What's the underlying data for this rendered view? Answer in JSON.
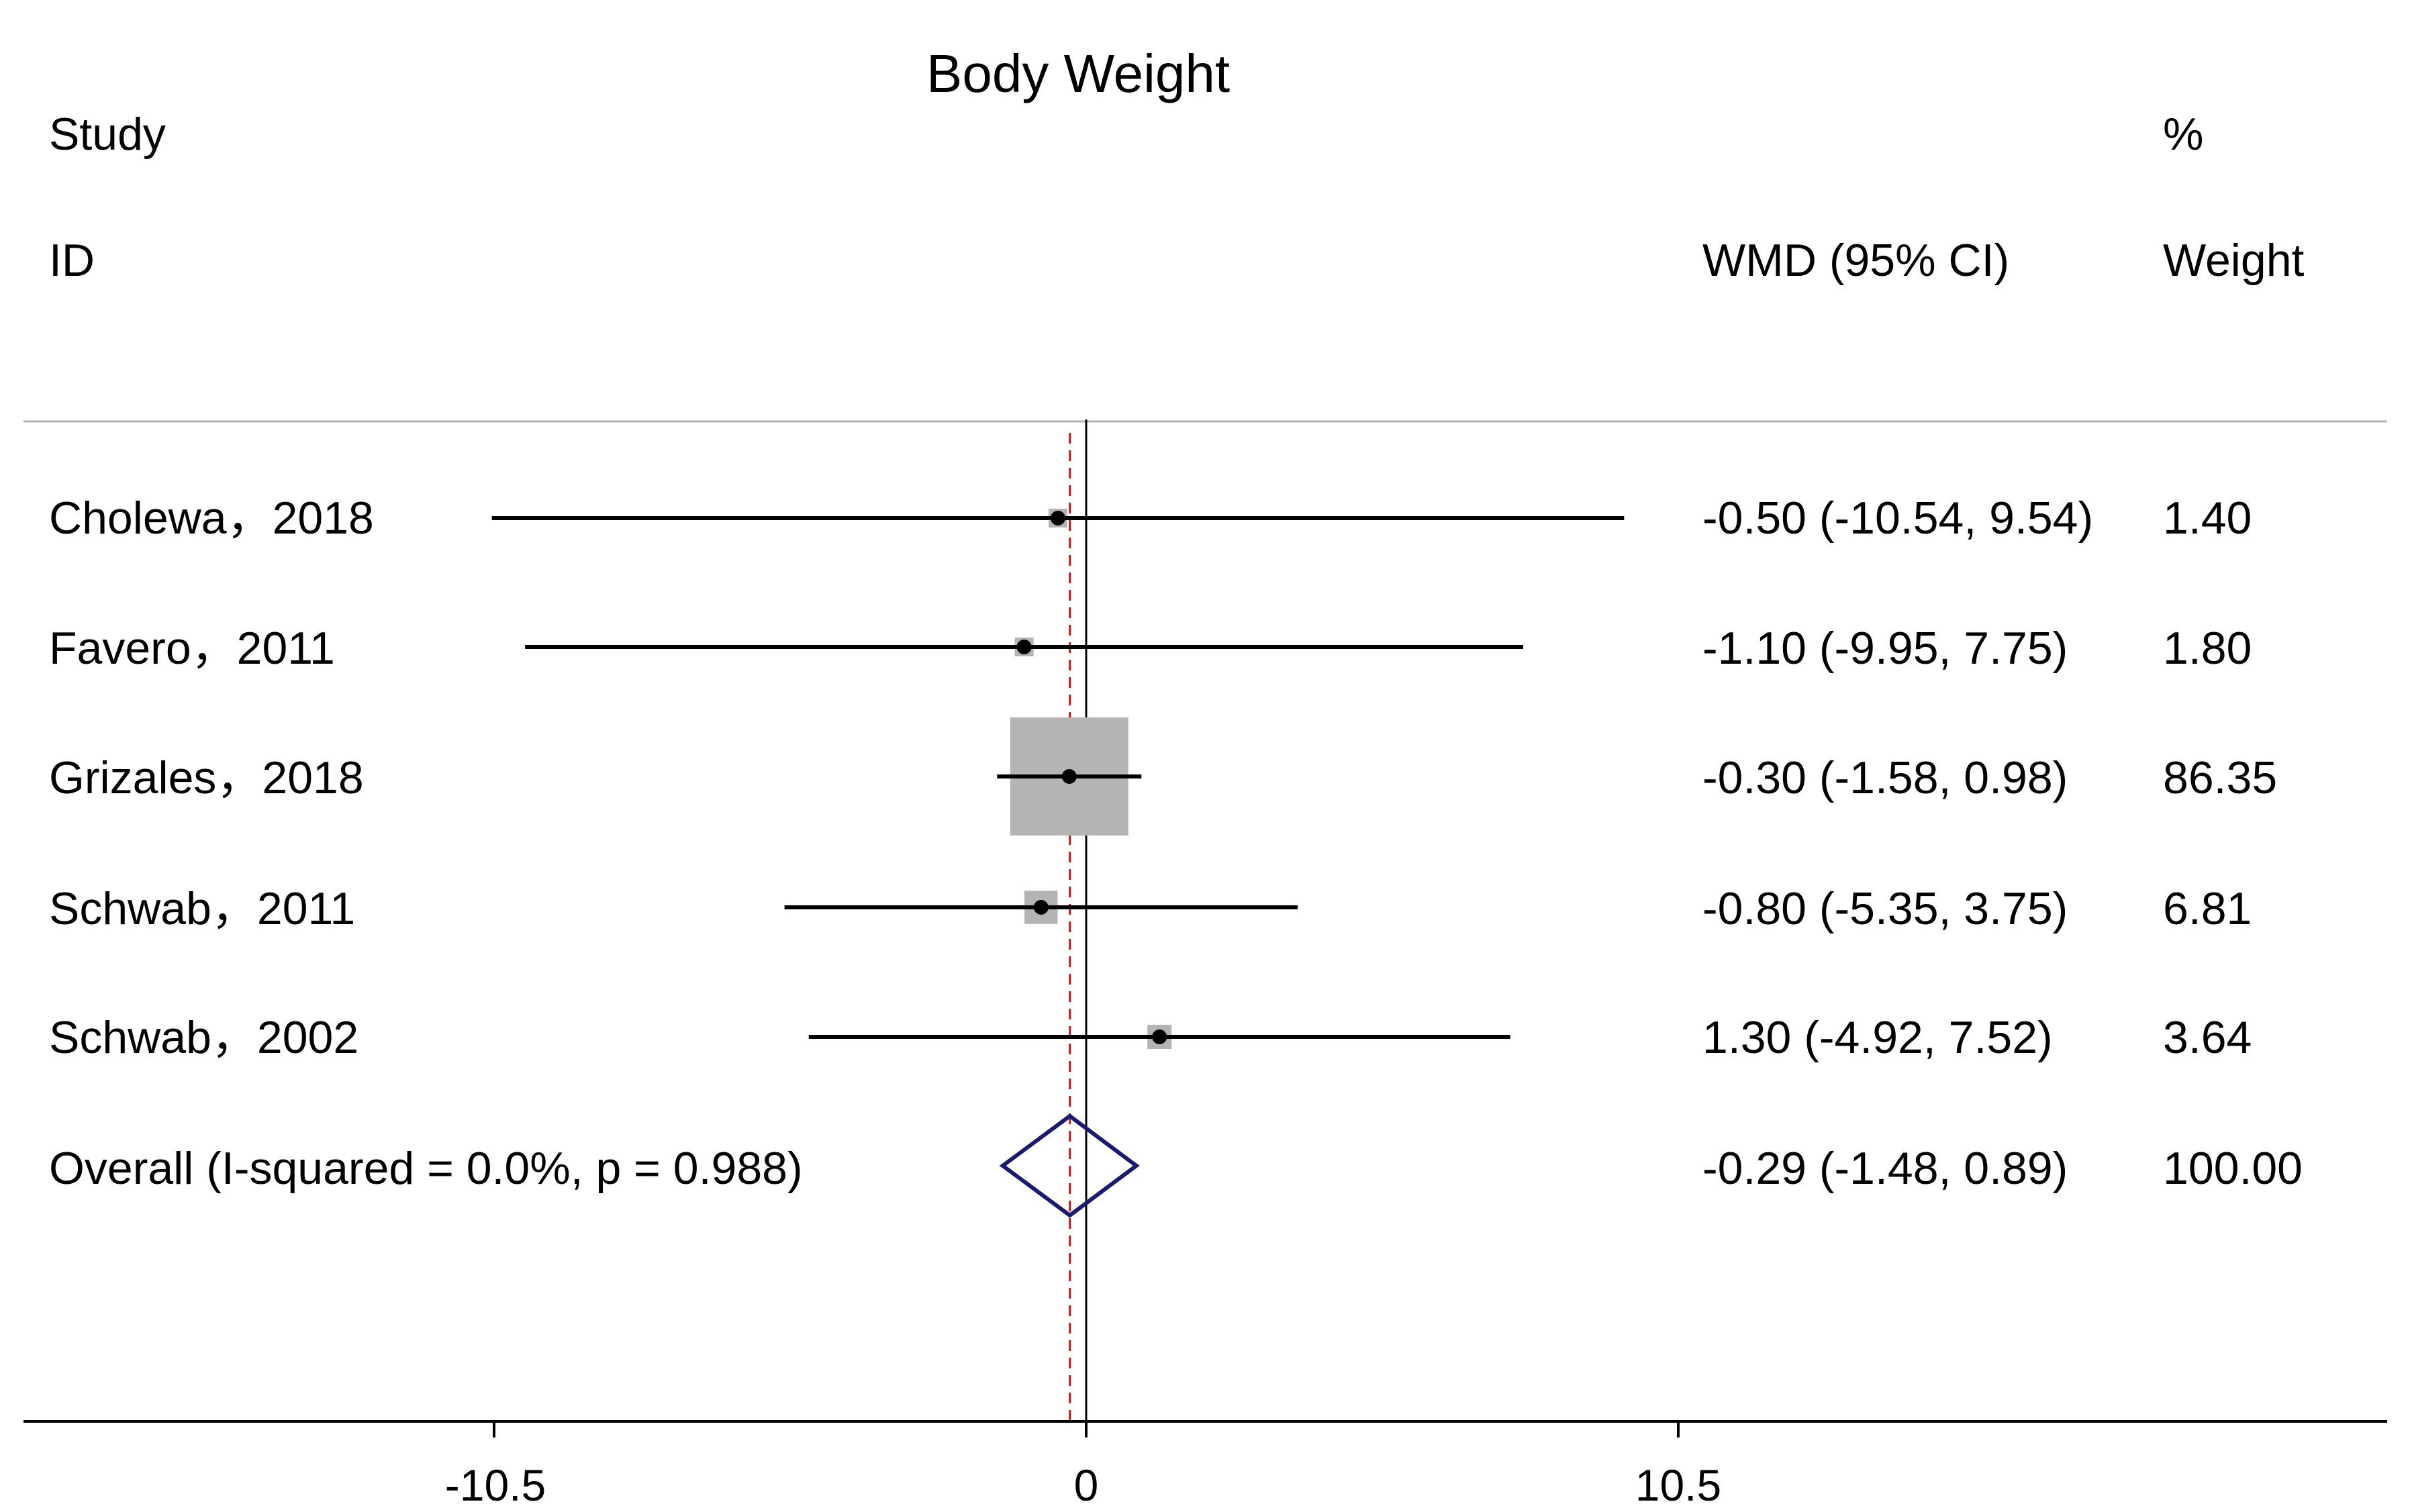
{
  "chart_data": {
    "type": "forest",
    "title": "Body Weight",
    "headers": {
      "study_line1": "Study",
      "study_line2": "ID",
      "effect": "WMD (95% CI)",
      "weight_line1": "%",
      "weight_line2": "Weight"
    },
    "studies": [
      {
        "label": "Cholewa，2018",
        "estimate": -0.5,
        "lower": -10.54,
        "upper": 9.54,
        "ci_text": "-0.50 (-10.54, 9.54)",
        "weight": 1.4,
        "weight_text": "1.40"
      },
      {
        "label": "Favero，2011",
        "estimate": -1.1,
        "lower": -9.95,
        "upper": 7.75,
        "ci_text": "-1.10 (-9.95, 7.75)",
        "weight": 1.8,
        "weight_text": "1.80"
      },
      {
        "label": "Grizales，2018",
        "estimate": -0.3,
        "lower": -1.58,
        "upper": 0.98,
        "ci_text": "-0.30 (-1.58, 0.98)",
        "weight": 86.35,
        "weight_text": "86.35"
      },
      {
        "label": "Schwab，2011",
        "estimate": -0.8,
        "lower": -5.35,
        "upper": 3.75,
        "ci_text": "-0.80 (-5.35, 3.75)",
        "weight": 6.81,
        "weight_text": "6.81"
      },
      {
        "label": "Schwab，2002",
        "estimate": 1.3,
        "lower": -4.92,
        "upper": 7.52,
        "ci_text": "1.30 (-4.92, 7.52)",
        "weight": 3.64,
        "weight_text": "3.64"
      }
    ],
    "overall": {
      "label": "Overall  (I-squared = 0.0%, p = 0.988)",
      "estimate": -0.29,
      "lower": -1.48,
      "upper": 0.89,
      "ci_text": "-0.29 (-1.48, 0.89)",
      "weight_text": "100.00"
    },
    "x_ticks": [
      -10.5,
      0,
      10.5
    ],
    "x_tick_labels": [
      "-10.5",
      "0",
      "10.5"
    ],
    "null_value": 0,
    "colors": {
      "ci_line": "#000000",
      "weight_box": "#b4b4b4",
      "overall_diamond": "#1a1a6e",
      "overall_ref_line": "#b22222",
      "axis": "#000000",
      "top_rule": "#b0b0b0"
    }
  }
}
